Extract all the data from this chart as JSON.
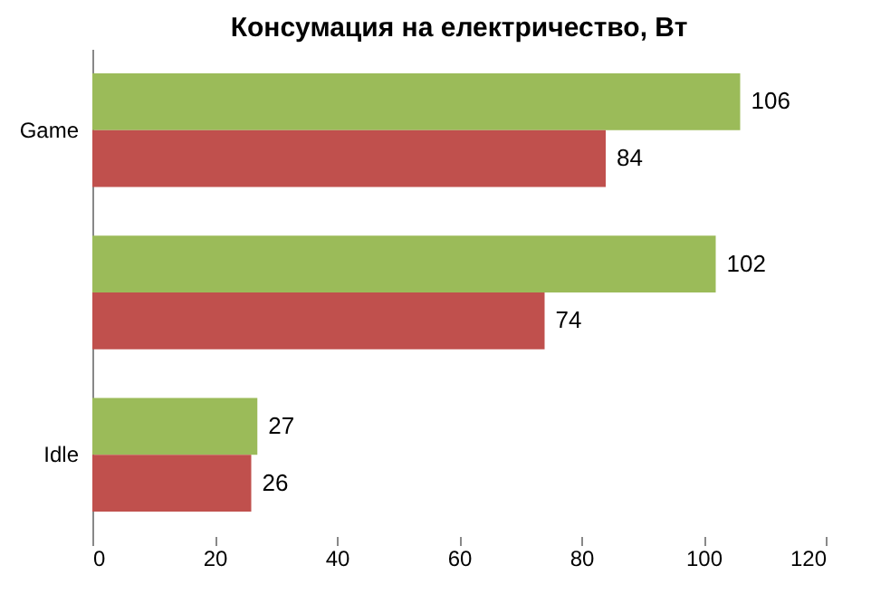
{
  "chart_data": {
    "type": "bar",
    "orientation": "horizontal",
    "title": "Консумация на електричество, Вт",
    "categories": [
      "Game",
      null,
      "Idle"
    ],
    "series": [
      {
        "color": "#9bbb59",
        "values": [
          106,
          102,
          27
        ]
      },
      {
        "color": "#c0504d",
        "values": [
          84,
          74,
          26
        ]
      }
    ],
    "xlim": [
      0,
      120
    ],
    "xticks": [
      0,
      20,
      40,
      60,
      80,
      100,
      120
    ],
    "data_labels": true,
    "grid": false,
    "legend": false
  }
}
